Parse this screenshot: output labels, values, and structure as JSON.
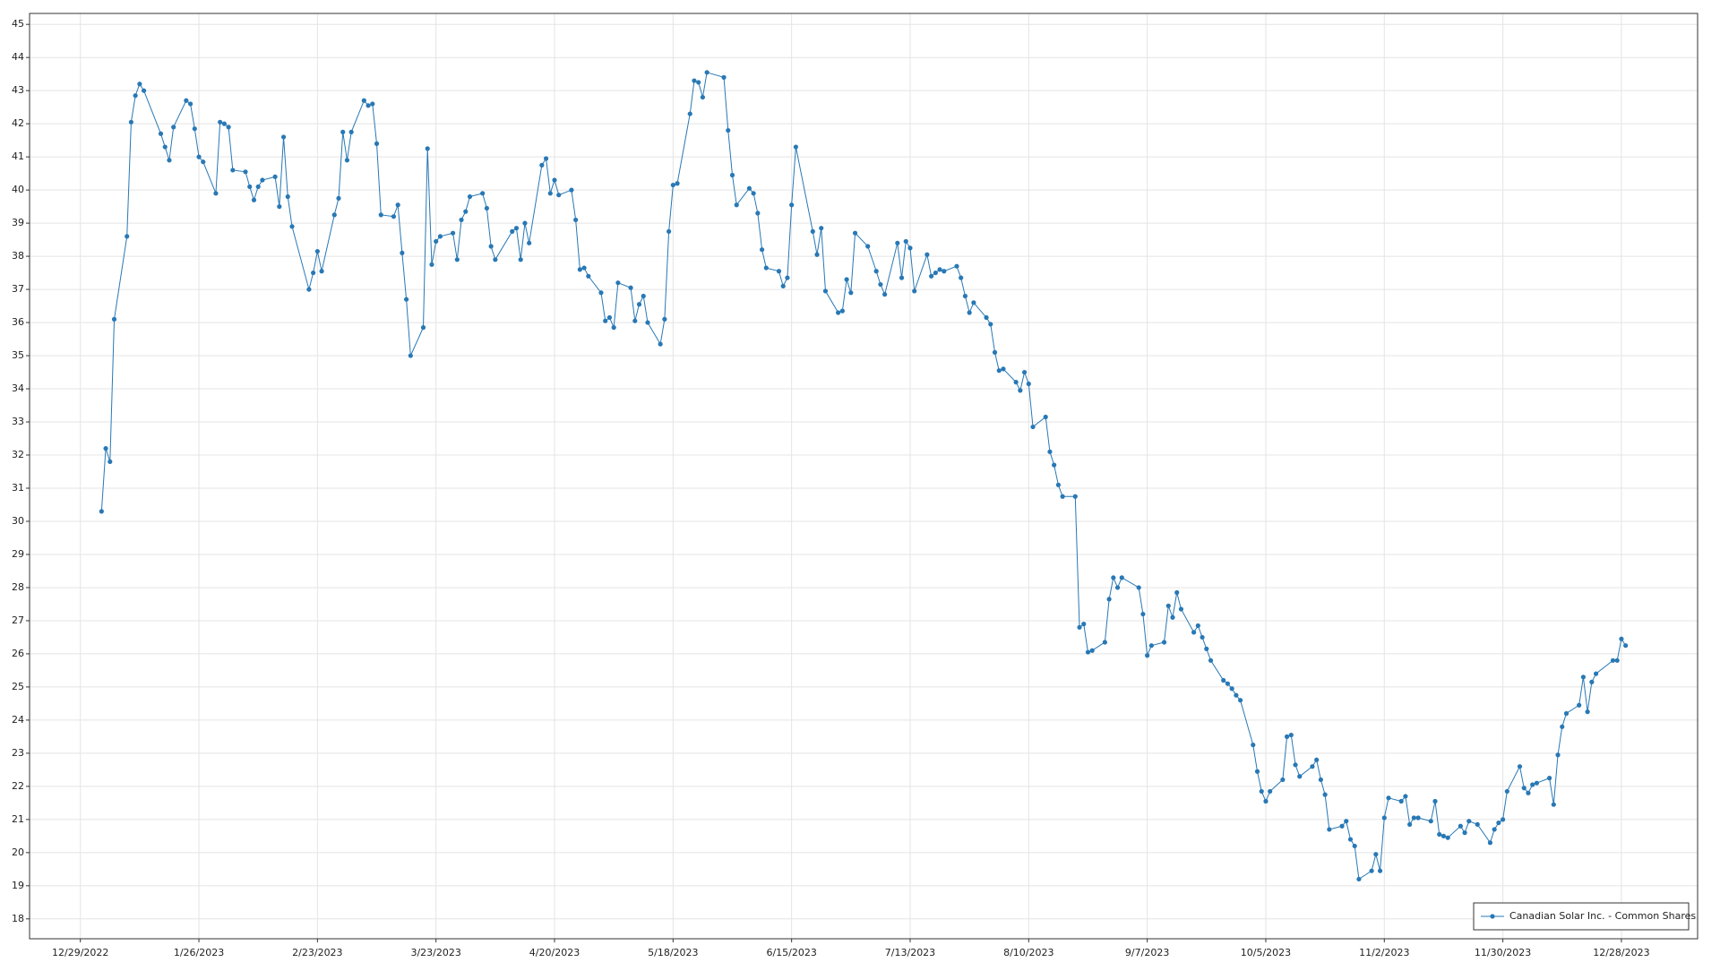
{
  "chart_data": {
    "type": "line",
    "x": [
      "1/3/2023",
      "1/4/2023",
      "1/5/2023",
      "1/6/2023",
      "1/9/2023",
      "1/10/2023",
      "1/11/2023",
      "1/12/2023",
      "1/13/2023",
      "1/17/2023",
      "1/18/2023",
      "1/19/2023",
      "1/20/2023",
      "1/23/2023",
      "1/24/2023",
      "1/25/2023",
      "1/26/2023",
      "1/27/2023",
      "1/30/2023",
      "1/31/2023",
      "2/1/2023",
      "2/2/2023",
      "2/3/2023",
      "2/6/2023",
      "2/7/2023",
      "2/8/2023",
      "2/9/2023",
      "2/10/2023",
      "2/13/2023",
      "2/14/2023",
      "2/15/2023",
      "2/16/2023",
      "2/17/2023",
      "2/21/2023",
      "2/22/2023",
      "2/23/2023",
      "2/24/2023",
      "2/27/2023",
      "2/28/2023",
      "3/1/2023",
      "3/2/2023",
      "3/3/2023",
      "3/6/2023",
      "3/7/2023",
      "3/8/2023",
      "3/9/2023",
      "3/10/2023",
      "3/13/2023",
      "3/14/2023",
      "3/15/2023",
      "3/16/2023",
      "3/17/2023",
      "3/20/2023",
      "3/21/2023",
      "3/22/2023",
      "3/23/2023",
      "3/24/2023",
      "3/27/2023",
      "3/28/2023",
      "3/29/2023",
      "3/30/2023",
      "3/31/2023",
      "4/3/2023",
      "4/4/2023",
      "4/5/2023",
      "4/6/2023",
      "4/10/2023",
      "4/11/2023",
      "4/12/2023",
      "4/13/2023",
      "4/14/2023",
      "4/17/2023",
      "4/18/2023",
      "4/19/2023",
      "4/20/2023",
      "4/21/2023",
      "4/24/2023",
      "4/25/2023",
      "4/26/2023",
      "4/27/2023",
      "4/28/2023",
      "5/1/2023",
      "5/2/2023",
      "5/3/2023",
      "5/4/2023",
      "5/5/2023",
      "5/8/2023",
      "5/9/2023",
      "5/10/2023",
      "5/11/2023",
      "5/12/2023",
      "5/15/2023",
      "5/16/2023",
      "5/17/2023",
      "5/18/2023",
      "5/19/2023",
      "5/22/2023",
      "5/23/2023",
      "5/24/2023",
      "5/25/2023",
      "5/26/2023",
      "5/30/2023",
      "5/31/2023",
      "6/1/2023",
      "6/2/2023",
      "6/5/2023",
      "6/6/2023",
      "6/7/2023",
      "6/8/2023",
      "6/9/2023",
      "6/12/2023",
      "6/13/2023",
      "6/14/2023",
      "6/15/2023",
      "6/16/2023",
      "6/20/2023",
      "6/21/2023",
      "6/22/2023",
      "6/23/2023",
      "6/26/2023",
      "6/27/2023",
      "6/28/2023",
      "6/29/2023",
      "6/30/2023",
      "7/3/2023",
      "7/5/2023",
      "7/6/2023",
      "7/7/2023",
      "7/10/2023",
      "7/11/2023",
      "7/12/2023",
      "7/13/2023",
      "7/14/2023",
      "7/17/2023",
      "7/18/2023",
      "7/19/2023",
      "7/20/2023",
      "7/21/2023",
      "7/24/2023",
      "7/25/2023",
      "7/26/2023",
      "7/27/2023",
      "7/28/2023",
      "7/31/2023",
      "8/1/2023",
      "8/2/2023",
      "8/3/2023",
      "8/4/2023",
      "8/7/2023",
      "8/8/2023",
      "8/9/2023",
      "8/10/2023",
      "8/11/2023",
      "8/14/2023",
      "8/15/2023",
      "8/16/2023",
      "8/17/2023",
      "8/18/2023",
      "8/21/2023",
      "8/22/2023",
      "8/23/2023",
      "8/24/2023",
      "8/25/2023",
      "8/28/2023",
      "8/29/2023",
      "8/30/2023",
      "8/31/2023",
      "9/1/2023",
      "9/5/2023",
      "9/6/2023",
      "9/7/2023",
      "9/8/2023",
      "9/11/2023",
      "9/12/2023",
      "9/13/2023",
      "9/14/2023",
      "9/15/2023",
      "9/18/2023",
      "9/19/2023",
      "9/20/2023",
      "9/21/2023",
      "9/22/2023",
      "9/25/2023",
      "9/26/2023",
      "9/27/2023",
      "9/28/2023",
      "9/29/2023",
      "10/2/2023",
      "10/3/2023",
      "10/4/2023",
      "10/5/2023",
      "10/6/2023",
      "10/9/2023",
      "10/10/2023",
      "10/11/2023",
      "10/12/2023",
      "10/13/2023",
      "10/16/2023",
      "10/17/2023",
      "10/18/2023",
      "10/19/2023",
      "10/20/2023",
      "10/23/2023",
      "10/24/2023",
      "10/25/2023",
      "10/26/2023",
      "10/27/2023",
      "10/30/2023",
      "10/31/2023",
      "11/1/2023",
      "11/2/2023",
      "11/3/2023",
      "11/6/2023",
      "11/7/2023",
      "11/8/2023",
      "11/9/2023",
      "11/10/2023",
      "11/13/2023",
      "11/14/2023",
      "11/15/2023",
      "11/16/2023",
      "11/17/2023",
      "11/20/2023",
      "11/21/2023",
      "11/22/2023",
      "11/24/2023",
      "11/27/2023",
      "11/28/2023",
      "11/29/2023",
      "11/30/2023",
      "12/1/2023",
      "12/4/2023",
      "12/5/2023",
      "12/6/2023",
      "12/7/2023",
      "12/8/2023",
      "12/11/2023",
      "12/12/2023",
      "12/13/2023",
      "12/14/2023",
      "12/15/2023",
      "12/18/2023",
      "12/19/2023",
      "12/20/2023",
      "12/21/2023",
      "12/22/2023",
      "12/26/2023",
      "12/27/2023",
      "12/28/2023",
      "12/29/2023"
    ],
    "series": [
      {
        "name": "Canadian Solar Inc. - Common Shares",
        "color": "#2878b5",
        "values": [
          30.3,
          32.2,
          31.8,
          36.1,
          38.6,
          42.05,
          42.85,
          43.2,
          43.0,
          41.7,
          41.3,
          40.9,
          41.9,
          42.7,
          42.6,
          41.85,
          41.0,
          40.85,
          39.9,
          42.05,
          42.0,
          41.9,
          40.6,
          40.55,
          40.1,
          39.7,
          40.1,
          40.3,
          40.4,
          39.5,
          41.6,
          39.8,
          38.9,
          37.0,
          37.5,
          38.15,
          37.55,
          39.25,
          39.75,
          41.75,
          40.9,
          41.75,
          42.7,
          42.55,
          42.6,
          41.4,
          39.25,
          39.2,
          39.55,
          38.1,
          36.7,
          35.0,
          35.85,
          41.25,
          37.75,
          38.45,
          38.6,
          38.7,
          37.9,
          39.1,
          39.35,
          39.8,
          39.9,
          39.45,
          38.3,
          37.9,
          38.75,
          38.85,
          37.9,
          39.0,
          38.4,
          40.75,
          40.95,
          39.9,
          40.3,
          39.85,
          40.0,
          39.1,
          37.6,
          37.65,
          37.4,
          36.9,
          36.05,
          36.15,
          35.85,
          37.2,
          37.05,
          36.05,
          36.55,
          36.8,
          36.0,
          35.35,
          36.1,
          38.75,
          40.15,
          40.2,
          42.3,
          43.3,
          43.25,
          42.8,
          43.55,
          43.4,
          41.8,
          40.45,
          39.55,
          40.05,
          39.9,
          39.3,
          38.2,
          37.65,
          37.55,
          37.1,
          37.35,
          39.55,
          41.3,
          38.75,
          38.05,
          38.85,
          36.95,
          36.3,
          36.35,
          37.3,
          36.9,
          38.7,
          38.3,
          37.55,
          37.15,
          36.85,
          38.4,
          37.35,
          38.45,
          38.25,
          36.95,
          38.05,
          37.4,
          37.5,
          37.6,
          37.55,
          37.7,
          37.35,
          36.8,
          36.3,
          36.6,
          36.15,
          35.95,
          35.1,
          34.55,
          34.6,
          34.2,
          33.95,
          34.5,
          34.15,
          32.85,
          33.15,
          32.1,
          31.7,
          31.1,
          30.75,
          30.75,
          26.8,
          26.9,
          26.05,
          26.1,
          26.35,
          27.65,
          28.3,
          28.0,
          28.3,
          28.0,
          27.2,
          25.95,
          26.25,
          26.35,
          27.45,
          27.1,
          27.85,
          27.35,
          26.65,
          26.85,
          26.5,
          26.15,
          25.8,
          25.2,
          25.1,
          24.95,
          24.75,
          24.6,
          23.25,
          22.45,
          21.85,
          21.55,
          21.85,
          22.2,
          23.5,
          23.55,
          22.65,
          22.3,
          22.6,
          22.8,
          22.2,
          21.75,
          20.7,
          20.8,
          20.95,
          20.4,
          20.2,
          19.2,
          19.45,
          19.95,
          19.45,
          21.05,
          21.65,
          21.55,
          21.7,
          20.85,
          21.05,
          21.05,
          20.95,
          21.55,
          20.55,
          20.5,
          20.45,
          20.8,
          20.6,
          20.95,
          20.85,
          20.3,
          20.7,
          20.9,
          21.0,
          21.85,
          22.6,
          21.95,
          21.8,
          22.05,
          22.1,
          22.25,
          21.45,
          22.95,
          23.8,
          24.2,
          24.45,
          25.3,
          24.25,
          25.15,
          25.4,
          25.8,
          25.8,
          26.45,
          26.25
        ]
      }
    ],
    "xlim": [
      "12/17/2022",
      "1/15/2024"
    ],
    "xticks": [
      "12/29/2022",
      "1/26/2023",
      "2/23/2023",
      "3/23/2023",
      "4/20/2023",
      "5/18/2023",
      "6/15/2023",
      "7/13/2023",
      "8/10/2023",
      "9/7/2023",
      "10/5/2023",
      "11/2/2023",
      "11/30/2023",
      "12/28/2023"
    ],
    "ylim": [
      17.4,
      45.33
    ],
    "yticks": [
      18,
      19,
      20,
      21,
      22,
      23,
      24,
      25,
      26,
      27,
      28,
      29,
      30,
      31,
      32,
      33,
      34,
      35,
      36,
      37,
      38,
      39,
      40,
      41,
      42,
      43,
      44,
      45
    ],
    "grid": true,
    "legend": "lower right"
  }
}
